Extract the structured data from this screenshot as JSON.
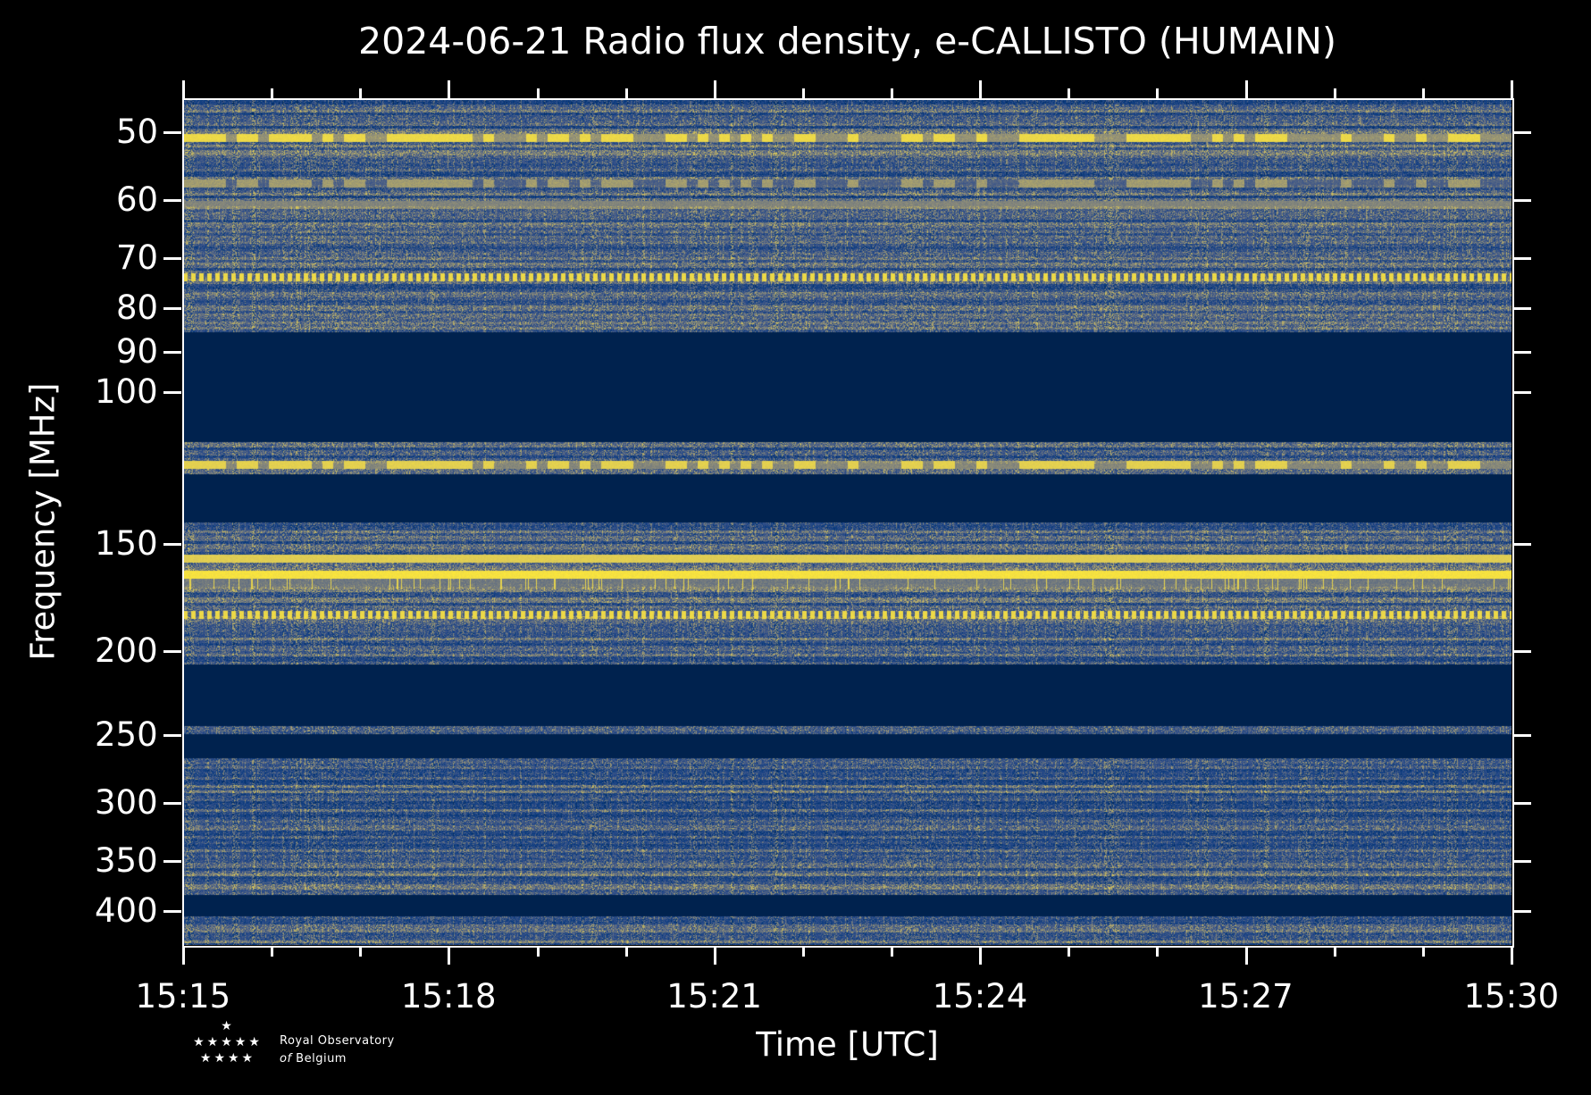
{
  "chart_data": {
    "type": "heatmap",
    "title": "2024-06-21 Radio flux density, e-CALLISTO (HUMAIN)",
    "xlabel": "Time [UTC]",
    "ylabel": "Frequency [MHz]",
    "x_range": [
      "15:15",
      "15:30"
    ],
    "x_range_minutes": [
      0,
      15
    ],
    "x_ticks": [
      {
        "minute": 0,
        "label": "15:15"
      },
      {
        "minute": 3,
        "label": "15:18"
      },
      {
        "minute": 6,
        "label": "15:21"
      },
      {
        "minute": 9,
        "label": "15:24"
      },
      {
        "minute": 12,
        "label": "15:27"
      },
      {
        "minute": 15,
        "label": "15:30"
      }
    ],
    "x_minor_tick_interval_minutes": 1,
    "y_scale": "log",
    "y_range_mhz": [
      45.8,
      438
    ],
    "y_inverted": true,
    "y_ticks": [
      50,
      60,
      70,
      80,
      90,
      100,
      150,
      200,
      250,
      300,
      350,
      400
    ],
    "colormap": [
      "#00224e",
      "#073a7e",
      "#34508a",
      "#8a8a7a",
      "#d8c65a",
      "#fde83a"
    ],
    "data_bands_mhz": [
      [
        45.8,
        85
      ],
      [
        114,
        124
      ],
      [
        141,
        206
      ],
      [
        243,
        248
      ],
      [
        265,
        382
      ],
      [
        405,
        438
      ]
    ],
    "emission_lines": [
      {
        "mhz": 50.7,
        "intensity": 0.95,
        "pattern": "patchy"
      },
      {
        "mhz": 57.2,
        "intensity": 0.7,
        "pattern": "patchy"
      },
      {
        "mhz": 60.5,
        "intensity": 0.62,
        "pattern": "steady"
      },
      {
        "mhz": 73.3,
        "intensity": 0.95,
        "pattern": "dashed"
      },
      {
        "mhz": 121,
        "intensity": 0.9,
        "pattern": "patchy"
      },
      {
        "mhz": 155.6,
        "intensity": 0.88,
        "pattern": "steady"
      },
      {
        "mhz": 163,
        "intensity": 1.0,
        "pattern": "steady"
      },
      {
        "mhz": 166.5,
        "intensity": 0.8,
        "pattern": "spiky"
      },
      {
        "mhz": 181,
        "intensity": 0.95,
        "pattern": "dashed"
      }
    ]
  },
  "logo": {
    "line1": "Royal Observatory",
    "line2_italic": "of",
    "line2": "Belgium"
  }
}
